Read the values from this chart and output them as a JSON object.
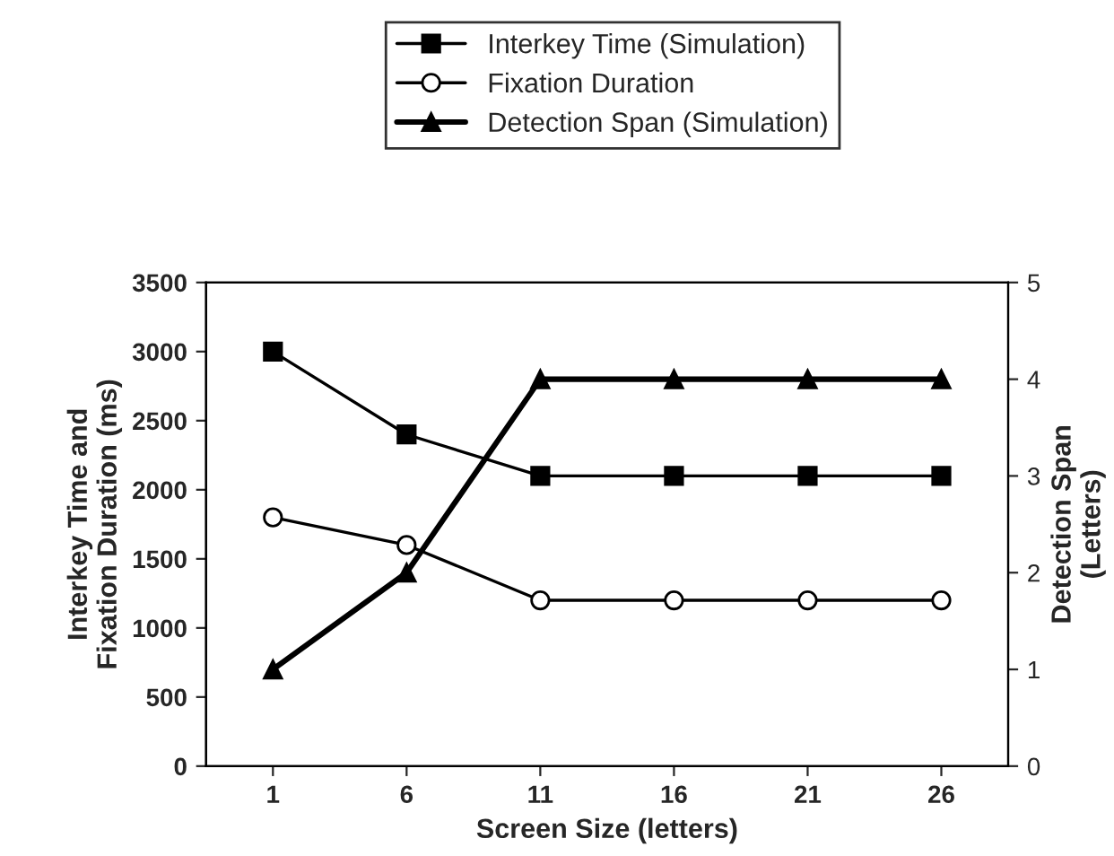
{
  "chart_data": {
    "type": "line",
    "xlabel": "Screen Size (letters)",
    "ylabel": "Interkey Time and\nFixation Duration (ms)",
    "y2label": "Detection Span\n(Letters)",
    "categories": [
      "1",
      "6",
      "11",
      "16",
      "21",
      "26"
    ],
    "series": [
      {
        "name": "Interkey Time (Simulation)",
        "color": "#000000",
        "marker": "square",
        "values": [
          3000,
          2400,
          2100,
          2100,
          2100,
          2100
        ]
      },
      {
        "name": "Fixation Duration",
        "color": "#000000",
        "marker": "circle",
        "values": [
          1800,
          1600,
          1200,
          1200,
          1200,
          1200
        ]
      },
      {
        "name": "Detection Span (Simulation)",
        "color": "#000000",
        "marker": "triangle",
        "axis": "y2",
        "values": [
          1,
          2,
          4,
          4,
          4,
          4
        ]
      }
    ],
    "ylim": [
      0,
      3500
    ],
    "yticks": [
      0,
      500,
      1000,
      1500,
      2000,
      2500,
      3000,
      3500
    ],
    "y2lim": [
      0,
      5
    ],
    "y2ticks": [
      0,
      1,
      2,
      3,
      4,
      5
    ],
    "grid": false,
    "legend": "top",
    "line_style": "solid"
  }
}
